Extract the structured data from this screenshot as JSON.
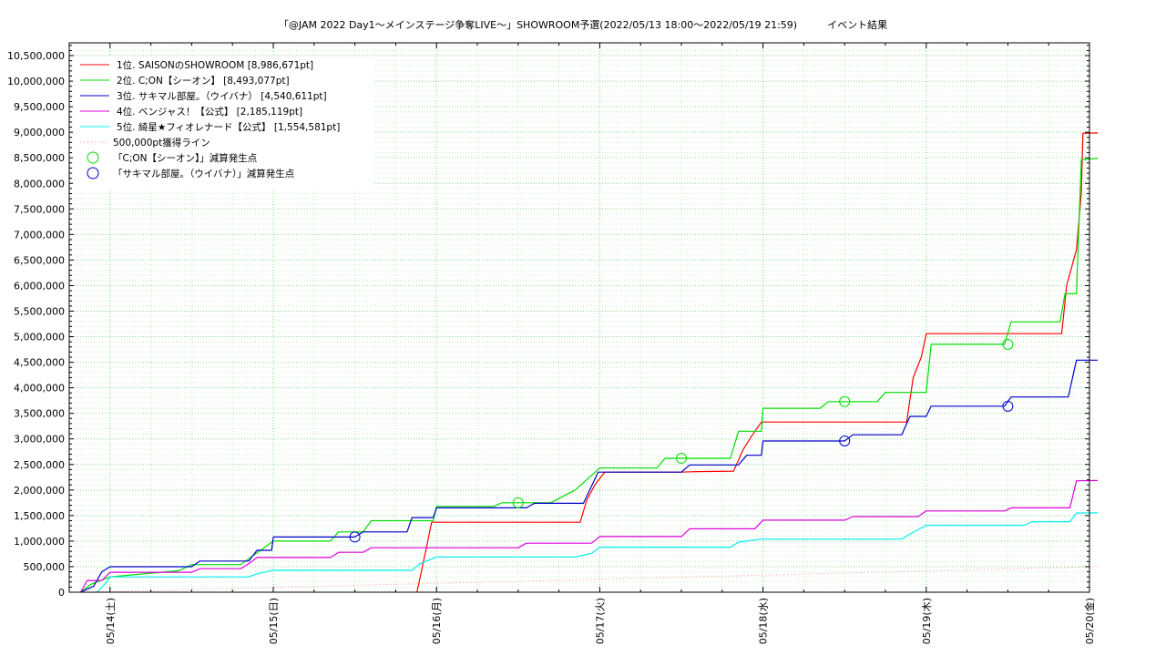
{
  "chart_data": {
    "type": "line",
    "title": "「@JAM 2022 Day1～メインステージ争奪LIVE～」SHOWROOM予選(2022/05/13 18:00～2022/05/19 21:59)　　　イベント結果",
    "xlabel": "",
    "ylabel": "",
    "xlim": [
      -0.25,
      6.0
    ],
    "ylim": [
      0,
      10750000
    ],
    "grid": true,
    "legend_position": "top-left",
    "x_ticks": [
      {
        "value": 0,
        "label": "05/14(土)"
      },
      {
        "value": 1,
        "label": "05/15(日)"
      },
      {
        "value": 2,
        "label": "05/16(月)"
      },
      {
        "value": 3,
        "label": "05/17(火)"
      },
      {
        "value": 4,
        "label": "05/18(水)"
      },
      {
        "value": 5,
        "label": "05/19(木)"
      },
      {
        "value": 6,
        "label": "05/20(金)"
      }
    ],
    "y_ticks": [
      {
        "value": 0,
        "label": "0"
      },
      {
        "value": 500000,
        "label": "500,000"
      },
      {
        "value": 1000000,
        "label": "1,000,000"
      },
      {
        "value": 1500000,
        "label": "1,500,000"
      },
      {
        "value": 2000000,
        "label": "2,000,000"
      },
      {
        "value": 2500000,
        "label": "2,500,000"
      },
      {
        "value": 3000000,
        "label": "3,000,000"
      },
      {
        "value": 3500000,
        "label": "3,500,000"
      },
      {
        "value": 4000000,
        "label": "4,000,000"
      },
      {
        "value": 4500000,
        "label": "4,500,000"
      },
      {
        "value": 5000000,
        "label": "5,000,000"
      },
      {
        "value": 5500000,
        "label": "5,500,000"
      },
      {
        "value": 6000000,
        "label": "6,000,000"
      },
      {
        "value": 6500000,
        "label": "6,500,000"
      },
      {
        "value": 7000000,
        "label": "7,000,000"
      },
      {
        "value": 7500000,
        "label": "7,500,000"
      },
      {
        "value": 8000000,
        "label": "8,000,000"
      },
      {
        "value": 8500000,
        "label": "8,500,000"
      },
      {
        "value": 9000000,
        "label": "9,000,000"
      },
      {
        "value": 9500000,
        "label": "9,500,000"
      },
      {
        "value": 10000000,
        "label": "10,000,000"
      },
      {
        "value": 10500000,
        "label": "10,500,000"
      }
    ],
    "series": [
      {
        "name": "1位. SAISONのSHOWROOM [8,986,671pt]",
        "color": "#ff0000",
        "points": [
          [
            1.88,
            0
          ],
          [
            1.9,
            300000
          ],
          [
            1.94,
            900000
          ],
          [
            1.97,
            1370000
          ],
          [
            2.1,
            1370000
          ],
          [
            2.3,
            1370000
          ],
          [
            2.5,
            1370000
          ],
          [
            2.7,
            1370000
          ],
          [
            2.88,
            1370000
          ],
          [
            2.92,
            1800000
          ],
          [
            2.97,
            2100000
          ],
          [
            3.03,
            2350000
          ],
          [
            3.5,
            2350000
          ],
          [
            3.6,
            2360000
          ],
          [
            3.82,
            2370000
          ],
          [
            3.88,
            2800000
          ],
          [
            3.94,
            3100000
          ],
          [
            3.99,
            3330000
          ],
          [
            4.5,
            3330000
          ],
          [
            4.88,
            3330000
          ],
          [
            4.92,
            4200000
          ],
          [
            4.97,
            4600000
          ],
          [
            5.0,
            5060000
          ],
          [
            5.5,
            5060000
          ],
          [
            5.83,
            5060000
          ],
          [
            5.86,
            6000000
          ],
          [
            5.92,
            6700000
          ],
          [
            5.95,
            7800000
          ],
          [
            5.96,
            8980000
          ],
          [
            6.05,
            8986671
          ]
        ]
      },
      {
        "name": "2位. C;ON【シーオン】 [8,493,077pt]",
        "color": "#00dd00",
        "points": [
          [
            -0.18,
            0
          ],
          [
            -0.12,
            150000
          ],
          [
            0.0,
            300000
          ],
          [
            0.42,
            420000
          ],
          [
            0.5,
            540000
          ],
          [
            0.8,
            540000
          ],
          [
            1.0,
            1000000
          ],
          [
            1.35,
            1000000
          ],
          [
            1.4,
            1180000
          ],
          [
            1.55,
            1180000
          ],
          [
            1.6,
            1400000
          ],
          [
            1.98,
            1400000
          ],
          [
            2.0,
            1680000
          ],
          [
            2.35,
            1680000
          ],
          [
            2.4,
            1750000
          ],
          [
            2.7,
            1750000
          ],
          [
            2.85,
            2000000
          ],
          [
            3.0,
            2430000
          ],
          [
            3.35,
            2430000
          ],
          [
            3.4,
            2620000
          ],
          [
            3.8,
            2620000
          ],
          [
            3.85,
            3150000
          ],
          [
            3.99,
            3150000
          ],
          [
            4.0,
            3600000
          ],
          [
            4.35,
            3600000
          ],
          [
            4.4,
            3730000
          ],
          [
            4.7,
            3730000
          ],
          [
            4.75,
            3910000
          ],
          [
            5.0,
            3910000
          ],
          [
            5.03,
            4850000
          ],
          [
            5.48,
            4850000
          ],
          [
            5.52,
            5290000
          ],
          [
            5.82,
            5290000
          ],
          [
            5.85,
            5840000
          ],
          [
            5.92,
            5840000
          ],
          [
            5.95,
            8460000
          ],
          [
            6.05,
            8493077
          ]
        ]
      },
      {
        "name": "3位. サキマル部屋。（ウイバナ） [4,540,611pt]",
        "color": "#0000cc",
        "points": [
          [
            -0.18,
            0
          ],
          [
            -0.1,
            120000
          ],
          [
            -0.05,
            400000
          ],
          [
            0.0,
            500000
          ],
          [
            0.5,
            500000
          ],
          [
            0.55,
            610000
          ],
          [
            0.85,
            610000
          ],
          [
            0.9,
            820000
          ],
          [
            0.99,
            820000
          ],
          [
            1.0,
            1080000
          ],
          [
            1.5,
            1080000
          ],
          [
            1.55,
            1180000
          ],
          [
            1.82,
            1180000
          ],
          [
            1.85,
            1460000
          ],
          [
            1.98,
            1460000
          ],
          [
            2.0,
            1650000
          ],
          [
            2.55,
            1650000
          ],
          [
            2.6,
            1740000
          ],
          [
            2.9,
            1740000
          ],
          [
            2.99,
            2350000
          ],
          [
            3.5,
            2350000
          ],
          [
            3.55,
            2490000
          ],
          [
            3.85,
            2490000
          ],
          [
            3.9,
            2680000
          ],
          [
            3.99,
            2680000
          ],
          [
            4.0,
            2960000
          ],
          [
            4.5,
            2960000
          ],
          [
            4.55,
            3080000
          ],
          [
            4.85,
            3080000
          ],
          [
            4.9,
            3440000
          ],
          [
            5.0,
            3440000
          ],
          [
            5.03,
            3640000
          ],
          [
            5.48,
            3640000
          ],
          [
            5.52,
            3820000
          ],
          [
            5.87,
            3820000
          ],
          [
            5.92,
            4540000
          ],
          [
            6.05,
            4540611
          ]
        ]
      },
      {
        "name": "4位. ベンジャス！【公式】 [2,185,119pt]",
        "color": "#dd00dd",
        "points": [
          [
            -0.18,
            0
          ],
          [
            -0.14,
            230000
          ],
          [
            -0.05,
            230000
          ],
          [
            0.0,
            390000
          ],
          [
            0.5,
            390000
          ],
          [
            0.55,
            460000
          ],
          [
            0.8,
            460000
          ],
          [
            0.85,
            560000
          ],
          [
            0.9,
            680000
          ],
          [
            1.35,
            680000
          ],
          [
            1.4,
            780000
          ],
          [
            1.55,
            780000
          ],
          [
            1.6,
            870000
          ],
          [
            2.5,
            870000
          ],
          [
            2.55,
            960000
          ],
          [
            2.95,
            960000
          ],
          [
            3.0,
            1090000
          ],
          [
            3.5,
            1090000
          ],
          [
            3.55,
            1240000
          ],
          [
            3.95,
            1240000
          ],
          [
            4.0,
            1410000
          ],
          [
            4.5,
            1410000
          ],
          [
            4.55,
            1480000
          ],
          [
            4.95,
            1480000
          ],
          [
            5.0,
            1590000
          ],
          [
            5.48,
            1590000
          ],
          [
            5.52,
            1650000
          ],
          [
            5.88,
            1650000
          ],
          [
            5.92,
            2180000
          ],
          [
            6.05,
            2185119
          ]
        ]
      },
      {
        "name": "5位. 綺星★フィオレナード【公式】 [1,554,581pt]",
        "color": "#00eeee",
        "points": [
          [
            -0.08,
            0
          ],
          [
            -0.02,
            200000
          ],
          [
            0.0,
            300000
          ],
          [
            0.85,
            300000
          ],
          [
            0.9,
            360000
          ],
          [
            1.0,
            430000
          ],
          [
            1.85,
            430000
          ],
          [
            1.9,
            560000
          ],
          [
            2.0,
            690000
          ],
          [
            2.85,
            690000
          ],
          [
            2.95,
            760000
          ],
          [
            3.0,
            880000
          ],
          [
            3.8,
            880000
          ],
          [
            3.85,
            980000
          ],
          [
            3.99,
            1040000
          ],
          [
            4.85,
            1040000
          ],
          [
            4.9,
            1140000
          ],
          [
            5.0,
            1310000
          ],
          [
            5.6,
            1310000
          ],
          [
            5.65,
            1380000
          ],
          [
            5.88,
            1380000
          ],
          [
            5.92,
            1550000
          ],
          [
            6.05,
            1554581
          ]
        ]
      },
      {
        "name": "500,000pt獲得ライン",
        "color": "#ff8888",
        "dashed": true,
        "points": [
          [
            -0.18,
            0
          ],
          [
            6.05,
            500000
          ]
        ]
      }
    ],
    "markers": [
      {
        "name": "「C;ON【シーオン】」減算発生点",
        "color": "#00dd00",
        "points": [
          [
            2.5,
            1750000
          ],
          [
            3.5,
            2620000
          ],
          [
            4.5,
            3730000
          ],
          [
            5.5,
            4850000
          ]
        ]
      },
      {
        "name": "「サキマル部屋。（ウイバナ）」減算発生点",
        "color": "#0000cc",
        "points": [
          [
            1.5,
            1080000
          ],
          [
            4.5,
            2960000
          ],
          [
            5.5,
            3640000
          ]
        ]
      }
    ]
  }
}
